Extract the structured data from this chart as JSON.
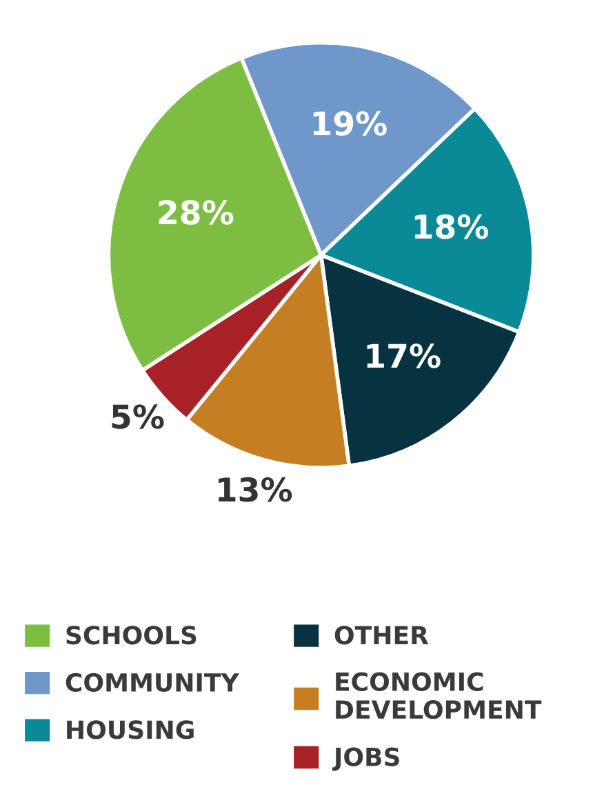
{
  "chart_data": {
    "type": "pie",
    "categories": [
      "COMMUNITY",
      "HOUSING",
      "OTHER",
      "ECONOMIC\nDEVELOPMENT",
      "JOBS",
      "SCHOOLS"
    ],
    "values": [
      19,
      18,
      17,
      13,
      5,
      28
    ],
    "colors": [
      "#6f97c9",
      "#0a8a96",
      "#06333f",
      "#c57f22",
      "#a82126",
      "#7dbd42"
    ],
    "value_labels": [
      "19%",
      "18%",
      "17%",
      "13%",
      "5%",
      "28%"
    ],
    "legend": "bottom"
  }
}
